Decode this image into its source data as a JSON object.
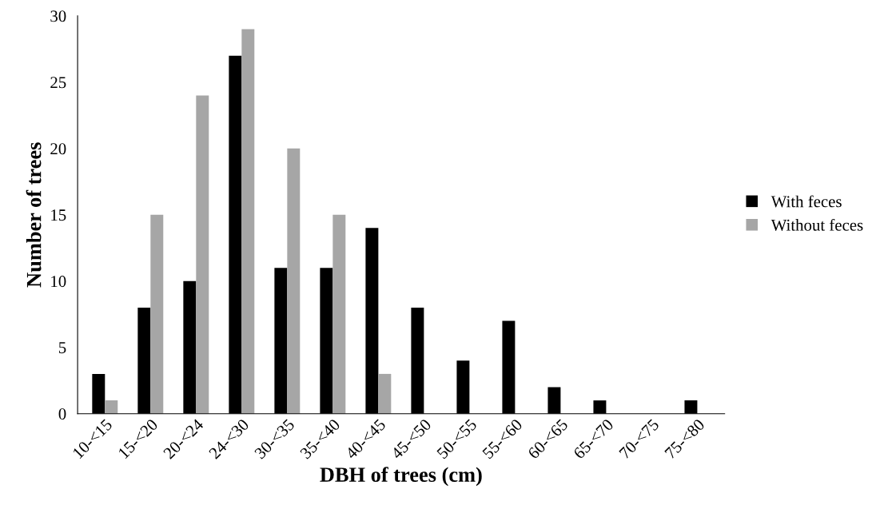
{
  "chart_data": {
    "type": "bar",
    "xlabel": "DBH of trees (cm)",
    "ylabel": "Number of trees",
    "categories": [
      "10-<15",
      "15-<20",
      "20-<24",
      "24-<30",
      "30-<35",
      "35-<40",
      "40-<45",
      "45-<50",
      "50-<55",
      "55-<60",
      "60-<65",
      "65-<70",
      "70-<75",
      "75-<80"
    ],
    "series": [
      {
        "name": "With feces",
        "color": "#000000",
        "values": [
          3,
          8,
          10,
          27,
          11,
          11,
          14,
          8,
          4,
          7,
          2,
          1,
          0,
          1
        ]
      },
      {
        "name": "Without feces",
        "color": "#a6a6a6",
        "values": [
          1,
          15,
          24,
          29,
          20,
          15,
          3,
          0,
          0,
          0,
          0,
          0,
          0,
          0
        ]
      }
    ],
    "ylim": [
      0,
      30
    ],
    "yticks": [
      0,
      5,
      10,
      15,
      20,
      25,
      30
    ],
    "grid": false,
    "legend": "right"
  }
}
